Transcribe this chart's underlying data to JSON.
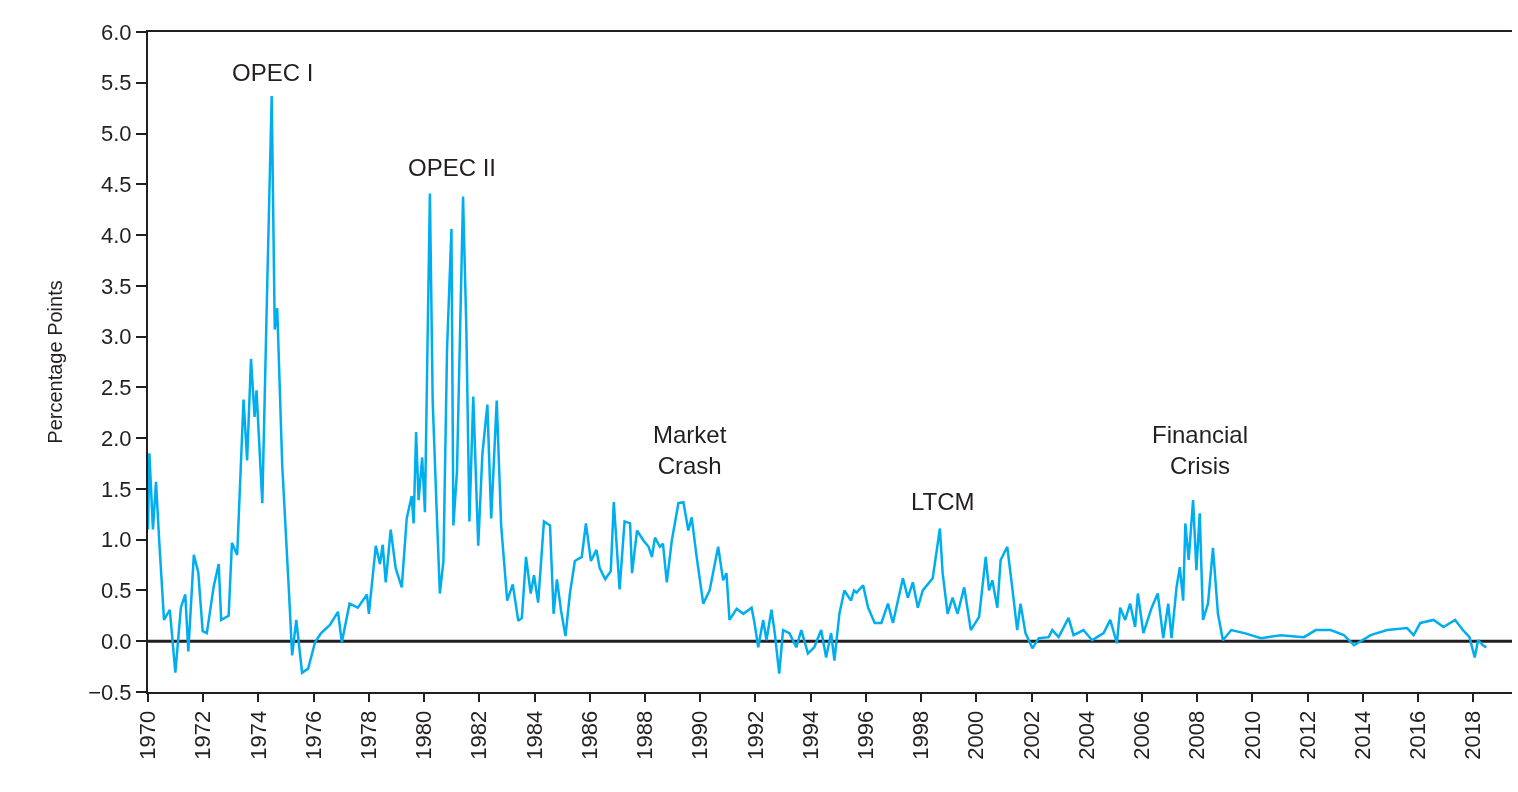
{
  "chart_data": {
    "type": "line",
    "ylabel": "Percentage Points",
    "x": [
      1970.0,
      1970.05,
      1970.18,
      1970.29,
      1970.41,
      1970.58,
      1970.79,
      1970.99,
      1971.19,
      1971.35,
      1971.46,
      1971.66,
      1971.82,
      1971.98,
      1972.13,
      1972.38,
      1972.56,
      1972.65,
      1972.92,
      1973.04,
      1973.23,
      1973.32,
      1973.46,
      1973.59,
      1973.73,
      1973.86,
      1973.93,
      1974.14,
      1974.32,
      1974.48,
      1974.59,
      1974.68,
      1974.86,
      1975.11,
      1975.22,
      1975.37,
      1975.58,
      1975.8,
      1976.05,
      1976.27,
      1976.59,
      1976.88,
      1977.02,
      1977.3,
      1977.6,
      1977.93,
      1978.0,
      1978.25,
      1978.4,
      1978.5,
      1978.61,
      1978.79,
      1978.97,
      1979.19,
      1979.37,
      1979.55,
      1979.62,
      1979.71,
      1979.8,
      1979.93,
      1980.03,
      1980.12,
      1980.21,
      1980.31,
      1980.45,
      1980.57,
      1980.7,
      1980.83,
      1980.99,
      1981.06,
      1981.19,
      1981.41,
      1981.53,
      1981.64,
      1981.78,
      1981.96,
      1982.11,
      1982.29,
      1982.43,
      1982.63,
      1982.79,
      1983.01,
      1983.21,
      1983.41,
      1983.54,
      1983.69,
      1983.86,
      1983.98,
      1984.13,
      1984.34,
      1984.56,
      1984.69,
      1984.81,
      1984.96,
      1985.12,
      1985.28,
      1985.46,
      1985.71,
      1985.86,
      1986.04,
      1986.24,
      1986.36,
      1986.56,
      1986.76,
      1986.87,
      1987.08,
      1987.26,
      1987.46,
      1987.53,
      1987.71,
      1987.95,
      1988.13,
      1988.25,
      1988.36,
      1988.54,
      1988.65,
      1988.79,
      1988.97,
      1989.21,
      1989.39,
      1989.57,
      1989.69,
      1989.87,
      1990.11,
      1990.34,
      1990.65,
      1990.83,
      1990.95,
      1991.06,
      1991.32,
      1991.56,
      1991.86,
      1991.96,
      1992.1,
      1992.28,
      1992.4,
      1992.58,
      1992.7,
      1992.86,
      1993.0,
      1993.23,
      1993.48,
      1993.66,
      1993.9,
      1994.13,
      1994.38,
      1994.56,
      1994.74,
      1994.86,
      1995.04,
      1995.22,
      1995.46,
      1995.57,
      1995.66,
      1995.9,
      1996.08,
      1996.32,
      1996.56,
      1996.8,
      1996.98,
      1997.34,
      1997.52,
      1997.7,
      1997.88,
      1998.06,
      1998.42,
      1998.68,
      1998.78,
      1998.96,
      1999.14,
      1999.32,
      1999.56,
      1999.8,
      2000.1,
      2000.34,
      2000.46,
      2000.58,
      2000.76,
      2000.88,
      2001.12,
      2001.3,
      2001.48,
      2001.6,
      2001.78,
      2002.03,
      2002.26,
      2002.62,
      2002.75,
      2002.98,
      2003.34,
      2003.52,
      2003.88,
      2004.19,
      2004.37,
      2004.61,
      2004.85,
      2005.09,
      2005.21,
      2005.39,
      2005.57,
      2005.75,
      2005.85,
      2006.05,
      2006.35,
      2006.57,
      2006.77,
      2006.95,
      2007.07,
      2007.25,
      2007.37,
      2007.49,
      2007.57,
      2007.69,
      2007.85,
      2007.97,
      2008.09,
      2008.21,
      2008.39,
      2008.57,
      2008.75,
      2008.93,
      2009.23,
      2009.71,
      2010.31,
      2011.03,
      2011.87,
      2012.29,
      2012.83,
      2013.31,
      2013.68,
      2014.28,
      2014.88,
      2015.6,
      2015.84,
      2016.08,
      2016.56,
      2016.92,
      2017.34,
      2017.62,
      2017.86,
      2018.05,
      2018.17,
      2018.35,
      2018.47
    ],
    "series": [
      {
        "color": "#00aeef",
        "values": [
          1.1,
          1.85,
          1.1,
          1.57,
          0.97,
          0.21,
          0.31,
          -0.31,
          0.33,
          0.46,
          -0.1,
          0.85,
          0.68,
          0.1,
          0.08,
          0.54,
          0.76,
          0.21,
          0.25,
          0.97,
          0.85,
          1.45,
          2.38,
          1.78,
          2.78,
          2.21,
          2.47,
          1.36,
          3.53,
          5.37,
          3.07,
          3.28,
          1.74,
          0.46,
          -0.14,
          0.21,
          -0.31,
          -0.27,
          -0.01,
          0.08,
          0.16,
          0.29,
          -0.01,
          0.37,
          0.33,
          0.46,
          0.27,
          0.94,
          0.76,
          0.95,
          0.58,
          1.1,
          0.72,
          0.53,
          1.21,
          1.43,
          1.16,
          2.06,
          1.39,
          1.81,
          1.27,
          2.87,
          4.41,
          2.37,
          1.32,
          0.47,
          0.79,
          2.87,
          4.06,
          1.14,
          1.67,
          4.38,
          3.07,
          1.18,
          2.41,
          0.94,
          1.84,
          2.33,
          1.21,
          2.37,
          1.14,
          0.4,
          0.56,
          0.2,
          0.23,
          0.83,
          0.47,
          0.65,
          0.38,
          1.18,
          1.14,
          0.27,
          0.61,
          0.3,
          0.05,
          0.47,
          0.79,
          0.83,
          1.16,
          0.79,
          0.9,
          0.72,
          0.61,
          0.69,
          1.37,
          0.51,
          1.18,
          1.16,
          0.67,
          1.09,
          0.99,
          0.93,
          0.83,
          1.02,
          0.93,
          0.96,
          0.58,
          0.99,
          1.36,
          1.37,
          1.09,
          1.22,
          0.83,
          0.37,
          0.5,
          0.93,
          0.6,
          0.67,
          0.21,
          0.32,
          0.27,
          0.33,
          0.19,
          -0.06,
          0.21,
          0.01,
          0.31,
          0.08,
          -0.32,
          0.11,
          0.08,
          -0.06,
          0.11,
          -0.12,
          -0.06,
          0.11,
          -0.16,
          0.08,
          -0.19,
          0.27,
          0.5,
          0.4,
          0.5,
          0.48,
          0.55,
          0.33,
          0.18,
          0.18,
          0.37,
          0.18,
          0.62,
          0.43,
          0.58,
          0.33,
          0.5,
          0.62,
          1.11,
          0.67,
          0.27,
          0.43,
          0.27,
          0.53,
          0.11,
          0.24,
          0.83,
          0.5,
          0.6,
          0.33,
          0.8,
          0.93,
          0.53,
          0.11,
          0.37,
          0.08,
          -0.07,
          0.03,
          0.04,
          0.11,
          0.04,
          0.23,
          0.06,
          0.11,
          0.01,
          0.04,
          0.08,
          0.21,
          -0.02,
          0.33,
          0.21,
          0.37,
          0.14,
          0.47,
          0.08,
          0.33,
          0.47,
          0.03,
          0.37,
          0.03,
          0.53,
          0.73,
          0.4,
          1.16,
          0.8,
          1.39,
          0.7,
          1.26,
          0.21,
          0.37,
          0.92,
          0.27,
          0.01,
          0.11,
          0.08,
          0.03,
          0.06,
          0.04,
          0.11,
          0.11,
          0.06,
          -0.04,
          0.06,
          0.11,
          0.13,
          0.06,
          0.18,
          0.21,
          0.14,
          0.21,
          0.11,
          0.04,
          -0.16,
          0.01,
          -0.04,
          -0.06
        ]
      }
    ],
    "xlim": [
      1970,
      2019.4
    ],
    "xticks": [
      1970,
      1972,
      1974,
      1976,
      1978,
      1980,
      1982,
      1984,
      1986,
      1988,
      1990,
      1992,
      1994,
      1996,
      1998,
      2000,
      2002,
      2004,
      2006,
      2008,
      2010,
      2012,
      2014,
      2016,
      2018
    ],
    "ylim": [
      -0.5,
      6.0
    ],
    "yticks": [
      {
        "value": -0.5,
        "label": "−0.5"
      },
      {
        "value": 0,
        "label": "0.0"
      },
      {
        "value": 0.5,
        "label": "0.5"
      },
      {
        "value": 1,
        "label": "1.0"
      },
      {
        "value": 1.5,
        "label": "1.5"
      },
      {
        "value": 2,
        "label": "2.0"
      },
      {
        "value": 2.5,
        "label": "2.5"
      },
      {
        "value": 3,
        "label": "3.0"
      },
      {
        "value": 3.5,
        "label": "3.5"
      },
      {
        "value": 4,
        "label": "4.0"
      },
      {
        "value": 4.5,
        "label": "4.5"
      },
      {
        "value": 5,
        "label": "5.0"
      },
      {
        "value": 5.5,
        "label": "5.5"
      },
      {
        "value": 6,
        "label": "6.0"
      }
    ],
    "ref_lines": [
      {
        "axis": "y",
        "value": 0,
        "color": "#231f20"
      }
    ],
    "annotations": [
      "OPEC I",
      "OPEC II",
      "Market\nCrash",
      "LTCM",
      "Financial\nCrisis"
    ],
    "grid": false,
    "marker": "none",
    "line_style": "solid"
  }
}
